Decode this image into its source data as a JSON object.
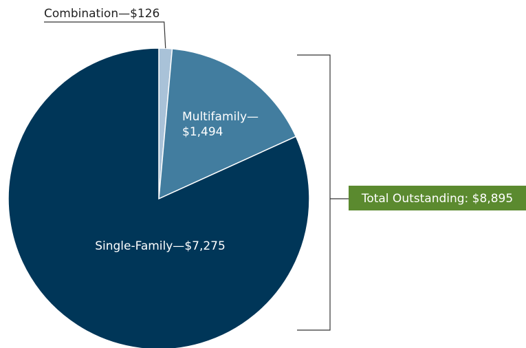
{
  "chart_data": {
    "type": "pie",
    "categories": [
      "Combination—",
      "Multifamily—",
      "Single-Family—"
    ],
    "values": [
      126,
      1494,
      7275
    ],
    "value_labels": [
      "$126",
      "$1,494",
      "$7,275"
    ],
    "colors": [
      "#a9c2d8",
      "#427d9f",
      "#003658"
    ],
    "annotation": "Total Outstanding: $8,895"
  }
}
